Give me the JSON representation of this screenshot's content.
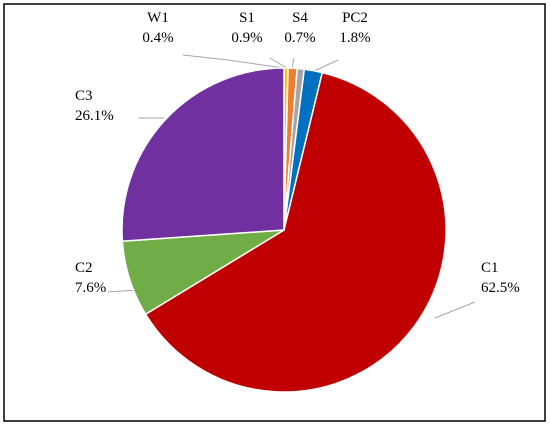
{
  "chart_data": {
    "type": "pie",
    "title": "",
    "legend": "none",
    "start_angle_deg": 0,
    "direction": "clockwise",
    "slices": [
      {
        "label": "W1",
        "value": 0.4,
        "display": "0.4%",
        "color": "#FFC000"
      },
      {
        "label": "S1",
        "value": 0.9,
        "display": "0.9%",
        "color": "#ED7D31"
      },
      {
        "label": "S4",
        "value": 0.7,
        "display": "0.7%",
        "color": "#A5A5A5"
      },
      {
        "label": "PC2",
        "value": 1.8,
        "display": "1.8%",
        "color": "#0070C0"
      },
      {
        "label": "C1",
        "value": 62.5,
        "display": "62.5%",
        "color": "#C00000"
      },
      {
        "label": "C2",
        "value": 7.6,
        "display": "7.6%",
        "color": "#70AD47"
      },
      {
        "label": "C3",
        "value": 26.1,
        "display": "26.1%",
        "color": "#7030A0"
      }
    ],
    "border_color": "#000000"
  }
}
